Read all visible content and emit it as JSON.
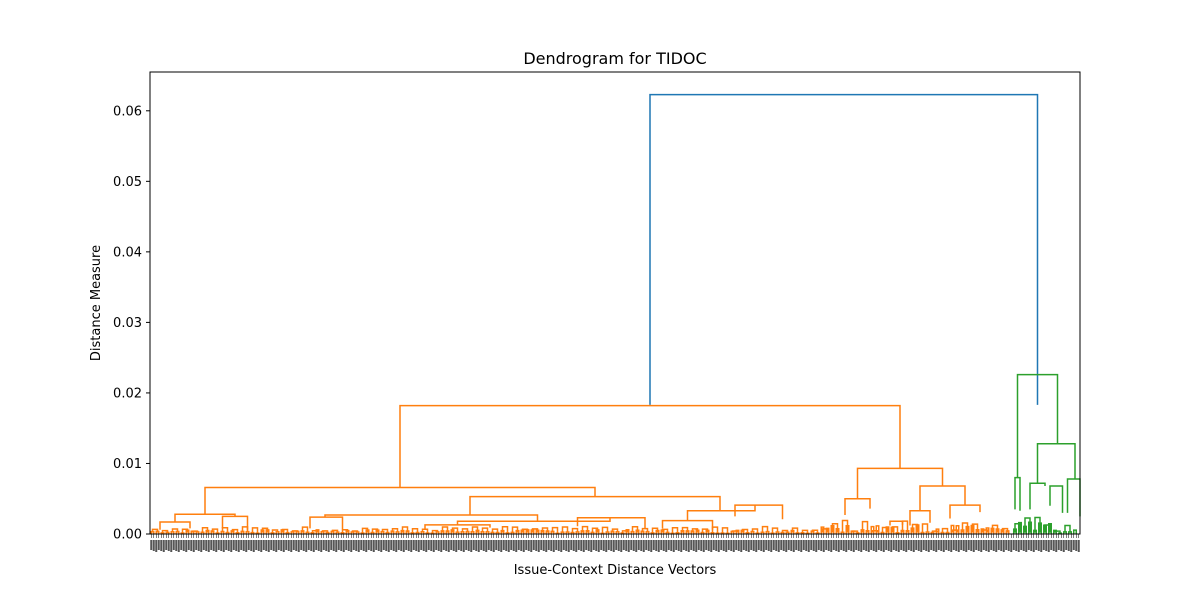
{
  "chart_data": {
    "type": "dendrogram",
    "title": "Dendrogram for TIDOC",
    "xlabel": "Issue-Context Distance Vectors",
    "ylabel": "Distance Measure",
    "ylim": [
      0,
      0.0655
    ],
    "yticks": [
      0.0,
      0.01,
      0.02,
      0.03,
      0.04,
      0.05,
      0.06
    ],
    "ytick_labels": [
      "0.00",
      "0.01",
      "0.02",
      "0.03",
      "0.04",
      "0.05",
      "0.06"
    ],
    "leaf_count": 372,
    "grid": false,
    "colors": {
      "root": "#1f77b4",
      "cluster_1": "#ff7f0e",
      "cluster_2": "#2ca02c"
    },
    "links": [
      {
        "color": "root",
        "x1": 2000,
        "x2": 3550,
        "y1": 0.0183,
        "y2": 0.0183,
        "top": 0.0623
      },
      {
        "color": "cluster_2",
        "x1": 3470,
        "x2": 3630,
        "y1": 0.008,
        "y2": 0.0128,
        "top": 0.0226
      },
      {
        "color": "cluster_2",
        "x1": 3550,
        "x2": 3700,
        "y1": 0.0072,
        "y2": 0.0078,
        "top": 0.0128
      },
      {
        "color": "cluster_2",
        "x1": 3460,
        "x2": 3480,
        "y1": 0.0035,
        "y2": 0.0033,
        "top": 0.008
      },
      {
        "color": "cluster_2",
        "x1": 3520,
        "x2": 3580,
        "y1": 0.0035,
        "y2": 0.0068,
        "top": 0.0072
      },
      {
        "color": "cluster_2",
        "x1": 3600,
        "x2": 3650,
        "y1": 0.004,
        "y2": 0.003,
        "top": 0.0068
      },
      {
        "color": "cluster_2",
        "x1": 3670,
        "x2": 3720,
        "y1": 0.003,
        "y2": 0.0025,
        "top": 0.0078
      },
      {
        "color": "cluster_1",
        "x1": 1000,
        "x2": 3000,
        "y1": 0.0066,
        "y2": 0.0093,
        "top": 0.0182
      },
      {
        "color": "cluster_1",
        "x1": 220,
        "x2": 1780,
        "y1": 0.0028,
        "y2": 0.0053,
        "top": 0.0066
      },
      {
        "color": "cluster_1",
        "x1": 100,
        "x2": 340,
        "y1": 0.0017,
        "y2": 0.0025,
        "top": 0.0028
      },
      {
        "color": "cluster_1",
        "x1": 40,
        "x2": 160,
        "y1": 0.0006,
        "y2": 0.0008,
        "top": 0.0017
      },
      {
        "color": "cluster_1",
        "x1": 290,
        "x2": 390,
        "y1": 0.0008,
        "y2": 0.0006,
        "top": 0.0025
      },
      {
        "color": "cluster_1",
        "x1": 1280,
        "x2": 2280,
        "y1": 0.0027,
        "y2": 0.0033,
        "top": 0.0053
      },
      {
        "color": "cluster_1",
        "x1": 700,
        "x2": 1550,
        "y1": 0.0024,
        "y2": 0.0018,
        "top": 0.0027
      },
      {
        "color": "cluster_1",
        "x1": 640,
        "x2": 770,
        "y1": 0.0008,
        "y2": 0.0007,
        "top": 0.0024
      },
      {
        "color": "cluster_1",
        "x1": 1230,
        "x2": 1840,
        "y1": 0.0013,
        "y2": 0.0023,
        "top": 0.0018
      },
      {
        "color": "cluster_1",
        "x1": 1100,
        "x2": 1360,
        "y1": 0.0007,
        "y2": 0.0009,
        "top": 0.0013
      },
      {
        "color": "cluster_1",
        "x1": 1710,
        "x2": 1980,
        "y1": 0.0011,
        "y2": 0.0008,
        "top": 0.0023
      },
      {
        "color": "cluster_1",
        "x1": 2150,
        "x2": 2420,
        "y1": 0.0019,
        "y2": 0.0041,
        "top": 0.0033
      },
      {
        "color": "cluster_1",
        "x1": 2050,
        "x2": 2250,
        "y1": 0.0008,
        "y2": 0.0006,
        "top": 0.0019
      },
      {
        "color": "cluster_1",
        "x1": 2340,
        "x2": 2530,
        "y1": 0.0025,
        "y2": 0.0021,
        "top": 0.0041
      },
      {
        "color": "cluster_1",
        "x1": 2830,
        "x2": 3170,
        "y1": 0.005,
        "y2": 0.0068,
        "top": 0.0093
      },
      {
        "color": "cluster_1",
        "x1": 2780,
        "x2": 2880,
        "y1": 0.0027,
        "y2": 0.0036,
        "top": 0.005
      },
      {
        "color": "cluster_1",
        "x1": 3080,
        "x2": 3260,
        "y1": 0.0033,
        "y2": 0.0041,
        "top": 0.0068
      },
      {
        "color": "cluster_1",
        "x1": 3200,
        "x2": 3320,
        "y1": 0.0022,
        "y2": 0.0031,
        "top": 0.0041
      },
      {
        "color": "cluster_1",
        "x1": 3040,
        "x2": 3120,
        "y1": 0.0012,
        "y2": 0.0016,
        "top": 0.0033
      },
      {
        "color": "cluster_1",
        "x1": 2960,
        "x2": 3010,
        "y1": 0.0012,
        "y2": 0.0013,
        "top": 0.0018
      }
    ]
  }
}
